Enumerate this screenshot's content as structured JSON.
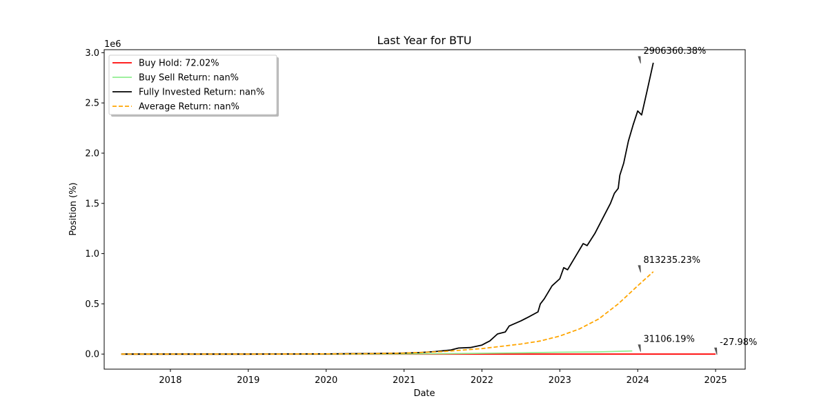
{
  "chart_data": {
    "type": "line",
    "title": "Last Year for BTU",
    "xlabel": "Date",
    "ylabel": "Position (%)",
    "y_multiplier_label": "1e6",
    "xlim": [
      2017.15,
      2025.38
    ],
    "ylim": [
      -0.15,
      3.03
    ],
    "x_ticks": [
      2018,
      2019,
      2020,
      2021,
      2022,
      2023,
      2024,
      2025
    ],
    "x_tick_labels": [
      "2018",
      "2019",
      "2020",
      "2021",
      "2022",
      "2023",
      "2024",
      "2025"
    ],
    "y_ticks": [
      0.0,
      0.5,
      1.0,
      1.5,
      2.0,
      2.5,
      3.0
    ],
    "y_tick_labels": [
      "0.0",
      "0.5",
      "1.0",
      "1.5",
      "2.0",
      "2.5",
      "3.0"
    ],
    "grid": false,
    "legend_position": "top-left",
    "series": [
      {
        "name": "Buy Hold: 72.02%",
        "color": "#ff0000",
        "style": "solid",
        "points": [
          [
            2017.37,
            0.0
          ],
          [
            2019.0,
            0.0
          ],
          [
            2021.0,
            0.0
          ],
          [
            2023.0,
            0.0
          ],
          [
            2025.0,
            0.0
          ]
        ],
        "end_label": "-27.98%",
        "end_label_x": 2025.0,
        "end_label_y": 0.0
      },
      {
        "name": "Buy Sell Return: nan%",
        "color": "#90ee90",
        "style": "solid",
        "points": [
          [
            2017.37,
            0.0
          ],
          [
            2020.0,
            0.0
          ],
          [
            2021.0,
            0.002
          ],
          [
            2021.5,
            0.004
          ],
          [
            2022.0,
            0.008
          ],
          [
            2022.5,
            0.012
          ],
          [
            2023.0,
            0.018
          ],
          [
            2023.5,
            0.022
          ],
          [
            2023.93,
            0.031
          ]
        ],
        "end_label": "31106.19%",
        "end_label_x": 2024.02,
        "end_label_y": 0.031
      },
      {
        "name": "Fully Invested Return: nan%",
        "color": "#000000",
        "style": "solid",
        "points": [
          [
            2017.37,
            0.0
          ],
          [
            2019.0,
            0.0
          ],
          [
            2020.0,
            0.002
          ],
          [
            2020.5,
            0.005
          ],
          [
            2020.9,
            0.008
          ],
          [
            2021.2,
            0.015
          ],
          [
            2021.4,
            0.025
          ],
          [
            2021.6,
            0.04
          ],
          [
            2021.7,
            0.06
          ],
          [
            2021.85,
            0.065
          ],
          [
            2022.0,
            0.09
          ],
          [
            2022.05,
            0.11
          ],
          [
            2022.1,
            0.13
          ],
          [
            2022.2,
            0.2
          ],
          [
            2022.3,
            0.22
          ],
          [
            2022.35,
            0.28
          ],
          [
            2022.5,
            0.33
          ],
          [
            2022.6,
            0.37
          ],
          [
            2022.72,
            0.42
          ],
          [
            2022.75,
            0.5
          ],
          [
            2022.8,
            0.55
          ],
          [
            2022.9,
            0.68
          ],
          [
            2023.0,
            0.75
          ],
          [
            2023.05,
            0.86
          ],
          [
            2023.1,
            0.84
          ],
          [
            2023.2,
            0.97
          ],
          [
            2023.3,
            1.1
          ],
          [
            2023.35,
            1.08
          ],
          [
            2023.45,
            1.2
          ],
          [
            2023.55,
            1.35
          ],
          [
            2023.65,
            1.5
          ],
          [
            2023.7,
            1.6
          ],
          [
            2023.75,
            1.65
          ],
          [
            2023.77,
            1.78
          ],
          [
            2023.82,
            1.9
          ],
          [
            2023.88,
            2.12
          ],
          [
            2023.94,
            2.28
          ],
          [
            2024.0,
            2.42
          ],
          [
            2024.05,
            2.38
          ],
          [
            2024.12,
            2.62
          ],
          [
            2024.2,
            2.9
          ]
        ],
        "end_label": "2906360.38%",
        "end_label_x": 2024.02,
        "end_label_y": 2.9
      },
      {
        "name": "Average Return: nan%",
        "color": "#ffa500",
        "style": "dashed",
        "points": [
          [
            2017.37,
            0.0
          ],
          [
            2019.0,
            0.0
          ],
          [
            2020.0,
            0.002
          ],
          [
            2020.5,
            0.004
          ],
          [
            2021.0,
            0.01
          ],
          [
            2021.5,
            0.025
          ],
          [
            2022.0,
            0.055
          ],
          [
            2022.5,
            0.1
          ],
          [
            2022.75,
            0.13
          ],
          [
            2023.0,
            0.18
          ],
          [
            2023.25,
            0.25
          ],
          [
            2023.5,
            0.35
          ],
          [
            2023.75,
            0.5
          ],
          [
            2024.0,
            0.68
          ],
          [
            2024.2,
            0.82
          ]
        ],
        "end_label": "813235.23%",
        "end_label_x": 2024.02,
        "end_label_y": 0.82
      }
    ]
  }
}
